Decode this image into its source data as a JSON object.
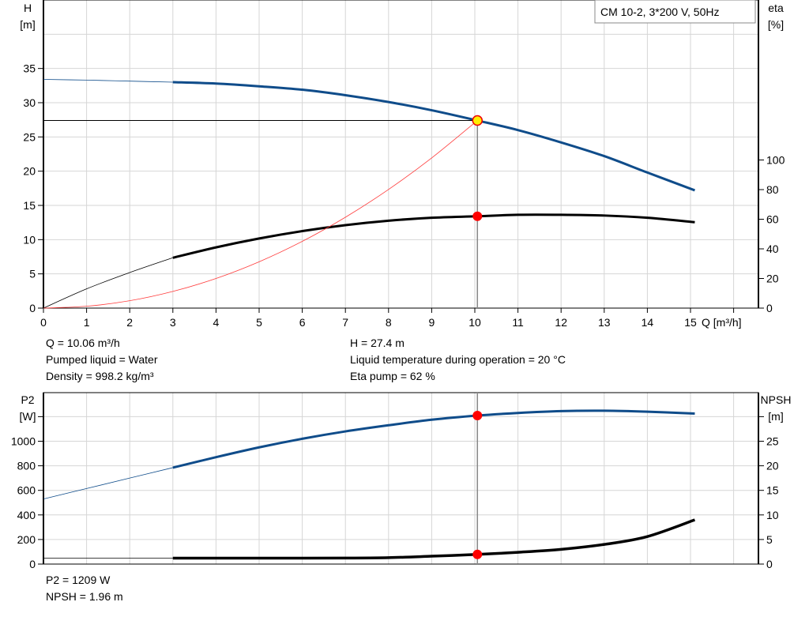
{
  "chart_data": [
    {
      "type": "line",
      "title": "CM 10-2, 3*200 V, 50Hz",
      "xlabel": "Q [m³/h]",
      "ylabel": [
        "H",
        "[m]"
      ],
      "y2label": [
        "eta",
        "[%]"
      ],
      "xlim": [
        0,
        16
      ],
      "ylim": [
        0,
        45
      ],
      "y2lim": [
        0,
        208
      ],
      "xticks": [
        0,
        1,
        2,
        3,
        4,
        5,
        6,
        7,
        8,
        9,
        10,
        11,
        12,
        13,
        14,
        15
      ],
      "yticks": [
        0,
        5,
        10,
        15,
        20,
        25,
        30,
        35
      ],
      "y2ticks": [
        0,
        20,
        40,
        60,
        80,
        100
      ],
      "grid": true,
      "legend": "top-right",
      "colors": {
        "head": "#0f4c8a",
        "eta": "#000000",
        "system": "#ff3b3b",
        "operating_point_head": "#ffee00",
        "operating_point": "#ff0000"
      },
      "series": [
        {
          "axis": "left",
          "x": [
            0,
            1,
            2,
            3,
            4,
            5,
            6,
            7,
            8,
            9,
            10.06,
            11,
            12,
            13,
            14,
            15.1
          ],
          "y": [
            33.4,
            33.3,
            33.15,
            33.0,
            32.8,
            32.4,
            31.9,
            31.1,
            30.1,
            28.9,
            27.4,
            26.0,
            24.2,
            22.2,
            19.8,
            17.2
          ]
        },
        {
          "axis": "right",
          "x": [
            0,
            1,
            2,
            3,
            4,
            5,
            6,
            7,
            8,
            9,
            10.06,
            11,
            12,
            13,
            14,
            15.1
          ],
          "y": [
            0,
            13,
            24,
            34,
            41,
            47,
            52,
            56,
            59,
            61,
            62,
            63,
            63,
            62.5,
            61,
            58
          ]
        },
        {
          "axis": "left",
          "x": [
            0,
            1,
            2,
            3,
            4,
            5,
            6,
            7,
            8,
            9,
            10.06
          ],
          "y": [
            0,
            0.27,
            1.08,
            2.44,
            4.33,
            6.77,
            9.75,
            13.27,
            17.33,
            21.93,
            27.4
          ]
        }
      ],
      "operating_point": {
        "Q": 10.06,
        "H": 27.4,
        "eta": 62
      }
    },
    {
      "type": "line",
      "ylabel": [
        "P2",
        "[W]"
      ],
      "y2label": [
        "NPSH",
        "[m]"
      ],
      "xlim": [
        0,
        16
      ],
      "ylim": [
        0,
        1400
      ],
      "y2lim": [
        0,
        35
      ],
      "yticks": [
        0,
        200,
        400,
        600,
        800,
        1000
      ],
      "y2ticks": [
        0,
        5,
        10,
        15,
        20,
        25
      ],
      "grid": true,
      "colors": {
        "p2": "#0f4c8a",
        "npsh": "#000000",
        "operating_point": "#ff0000"
      },
      "series": [
        {
          "axis": "left",
          "x": [
            0,
            1,
            2,
            3,
            4,
            5,
            6,
            7,
            8,
            9,
            10.06,
            11,
            12,
            13,
            14,
            15.1
          ],
          "y": [
            530,
            615,
            700,
            785,
            870,
            950,
            1020,
            1080,
            1130,
            1175,
            1209,
            1230,
            1245,
            1248,
            1240,
            1225
          ]
        },
        {
          "axis": "right",
          "x": [
            0,
            1,
            2,
            3,
            4,
            5,
            6,
            7,
            8,
            9,
            10.06,
            11,
            12,
            13,
            14,
            15.1
          ],
          "y": [
            1.2,
            1.2,
            1.2,
            1.2,
            1.2,
            1.2,
            1.2,
            1.22,
            1.3,
            1.6,
            1.96,
            2.4,
            3.0,
            4.0,
            5.6,
            9.0
          ]
        }
      ],
      "operating_point": {
        "Q": 10.06,
        "P2": 1209,
        "NPSH": 1.96
      }
    }
  ],
  "info_top_left": [
    "Q = 10.06 m³/h",
    "Pumped liquid = Water",
    "Density = 998.2 kg/m³"
  ],
  "info_top_right": [
    "H = 27.4 m",
    "Liquid temperature during operation = 20 °C",
    "Eta pump = 62 %"
  ],
  "info_bottom": [
    "P2 = 1209 W",
    "NPSH = 1.96 m"
  ]
}
